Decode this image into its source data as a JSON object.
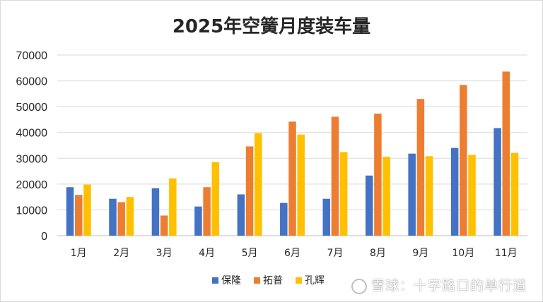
{
  "chart_data": {
    "type": "bar",
    "title": "2025年空簧月度装车量",
    "categories": [
      "1月",
      "2月",
      "3月",
      "4月",
      "5月",
      "6月",
      "7月",
      "8月",
      "9月",
      "10月",
      "11月"
    ],
    "series": [
      {
        "name": "保隆",
        "color": "#4472c4",
        "values": [
          18800,
          14300,
          18400,
          11300,
          16000,
          12700,
          14300,
          23300,
          31800,
          34000,
          41700
        ]
      },
      {
        "name": "拓普",
        "color": "#ed7d31",
        "values": [
          15800,
          13000,
          7800,
          18800,
          34600,
          44200,
          46100,
          47300,
          53000,
          58400,
          63600
        ]
      },
      {
        "name": "孔辉",
        "color": "#ffc000",
        "values": [
          19800,
          15000,
          22200,
          28500,
          39700,
          39200,
          32400,
          30600,
          30800,
          31300,
          32100
        ]
      }
    ],
    "ylim": [
      0,
      70000
    ],
    "yticks": [
      0,
      10000,
      20000,
      30000,
      40000,
      50000,
      60000,
      70000
    ],
    "xlabel": "",
    "ylabel": "",
    "grid": true,
    "legend": "bottom-right"
  },
  "watermark": "雪球：十字路口的单行道"
}
